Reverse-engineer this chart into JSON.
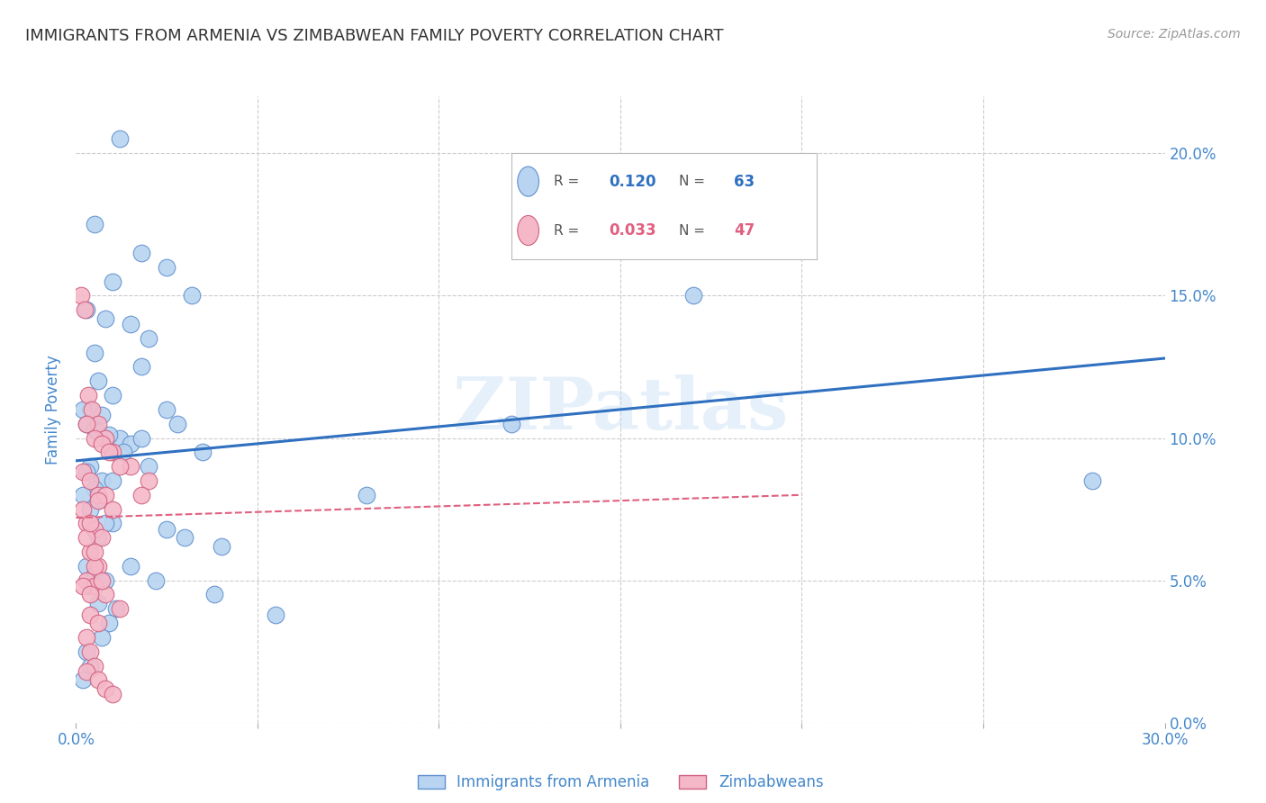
{
  "title": "IMMIGRANTS FROM ARMENIA VS ZIMBABWEAN FAMILY POVERTY CORRELATION CHART",
  "source": "Source: ZipAtlas.com",
  "xlabel_vals": [
    0.0,
    5.0,
    10.0,
    15.0,
    20.0,
    25.0,
    30.0
  ],
  "ylabel": "Family Poverty",
  "ylabel_vals": [
    0.0,
    5.0,
    10.0,
    15.0,
    20.0
  ],
  "xlim": [
    0,
    30
  ],
  "ylim": [
    0,
    22
  ],
  "legend_entries": [
    {
      "label": "Immigrants from Armenia",
      "R": "0.120",
      "N": "63",
      "color": "#a8c8f0"
    },
    {
      "label": "Zimbabweans",
      "R": "0.033",
      "N": "47",
      "color": "#f5b8c8"
    }
  ],
  "blue_scatter_x": [
    1.2,
    0.5,
    1.8,
    2.5,
    1.0,
    3.2,
    0.3,
    0.8,
    1.5,
    2.0,
    0.6,
    1.0,
    0.4,
    0.2,
    0.7,
    0.3,
    0.5,
    0.8,
    1.2,
    1.5,
    2.8,
    3.5,
    2.0,
    1.8,
    0.6,
    0.9,
    1.3,
    0.4,
    0.3,
    0.7,
    0.5,
    0.2,
    0.6,
    0.4,
    1.0,
    2.5,
    3.0,
    4.0,
    5.5,
    8.0,
    12.0,
    17.0,
    28.0,
    0.3,
    0.5,
    0.8,
    0.4,
    1.5,
    2.2,
    3.8,
    0.6,
    1.1,
    0.9,
    0.7,
    0.3,
    0.4,
    0.2,
    0.5,
    1.8,
    2.5,
    1.0,
    0.6,
    0.8
  ],
  "blue_scatter_y": [
    20.5,
    17.5,
    16.5,
    16.0,
    15.5,
    15.0,
    14.5,
    14.2,
    14.0,
    13.5,
    12.0,
    11.5,
    11.0,
    11.0,
    10.8,
    10.5,
    10.3,
    10.0,
    10.0,
    9.8,
    10.5,
    9.5,
    9.0,
    12.5,
    10.2,
    10.1,
    9.5,
    9.0,
    8.8,
    8.5,
    8.2,
    8.0,
    7.8,
    7.5,
    7.0,
    6.8,
    6.5,
    6.2,
    3.8,
    8.0,
    10.5,
    15.0,
    8.5,
    5.5,
    5.2,
    5.0,
    4.8,
    5.5,
    5.0,
    4.5,
    4.2,
    4.0,
    3.5,
    3.0,
    2.5,
    2.0,
    1.5,
    13.0,
    10.0,
    11.0,
    8.5,
    6.5,
    7.0
  ],
  "pink_scatter_x": [
    0.15,
    0.25,
    0.35,
    0.45,
    0.6,
    0.8,
    1.0,
    1.5,
    2.0,
    0.3,
    0.5,
    0.7,
    0.9,
    1.2,
    0.2,
    0.4,
    0.6,
    0.8,
    1.0,
    0.3,
    0.5,
    0.7,
    0.4,
    0.6,
    0.3,
    0.5,
    0.8,
    1.2,
    0.4,
    0.6,
    0.3,
    1.8,
    0.4,
    0.5,
    0.3,
    0.6,
    0.8,
    1.0,
    0.2,
    0.4,
    0.5,
    0.7,
    0.3,
    0.5,
    0.2,
    0.4,
    0.6
  ],
  "pink_scatter_y": [
    15.0,
    14.5,
    11.5,
    11.0,
    10.5,
    10.0,
    9.5,
    9.0,
    8.5,
    10.5,
    10.0,
    9.8,
    9.5,
    9.0,
    8.8,
    8.5,
    8.0,
    8.0,
    7.5,
    7.0,
    6.8,
    6.5,
    6.0,
    5.5,
    5.0,
    4.8,
    4.5,
    4.0,
    3.8,
    3.5,
    3.0,
    8.0,
    2.5,
    2.0,
    1.8,
    1.5,
    1.2,
    1.0,
    4.8,
    4.5,
    5.5,
    5.0,
    6.5,
    6.0,
    7.5,
    7.0,
    7.8
  ],
  "blue_line_x": [
    0,
    30
  ],
  "blue_line_y": [
    9.2,
    12.8
  ],
  "pink_line_x": [
    0,
    20
  ],
  "pink_line_y": [
    7.2,
    8.0
  ],
  "watermark": "ZIPatlas",
  "scatter_color_blue": "#b8d4f0",
  "scatter_color_pink": "#f5b8c8",
  "scatter_edge_blue": "#6090d0",
  "scatter_edge_pink": "#d06080",
  "line_color_blue": "#3070c0",
  "line_color_pink": "#e06080",
  "background_color": "#ffffff",
  "grid_color": "#cccccc",
  "title_color": "#333333",
  "axis_label_color": "#4488cc",
  "tick_color": "#4488cc"
}
